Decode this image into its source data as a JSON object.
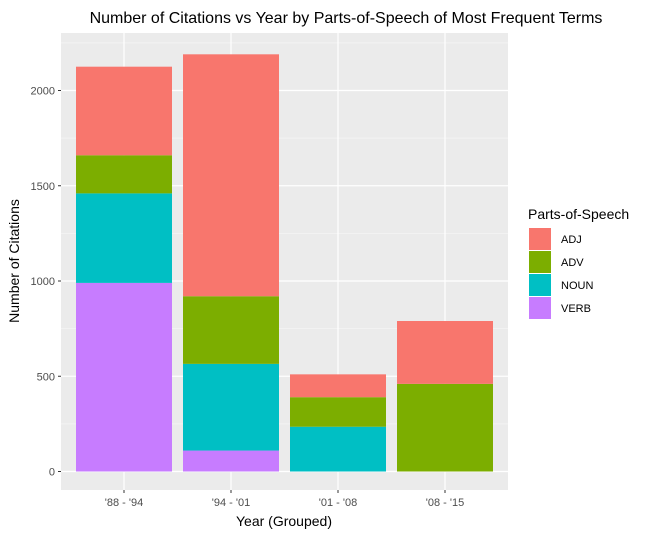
{
  "chart_data": {
    "type": "bar",
    "stacked": true,
    "title": "Number of Citations vs Year by Parts-of-Speech of Most Frequent Terms",
    "xlabel": "Year (Grouped)",
    "ylabel": "Number of Citations",
    "categories": [
      "'88 - '94",
      "'94 - '01",
      "'01 - '08",
      "'08 - '15"
    ],
    "ylim": [
      0,
      2290
    ],
    "yticks": [
      0,
      500,
      1000,
      1500,
      2000
    ],
    "grid": true,
    "legend": {
      "title": "Parts-of-Speech",
      "position": "right"
    },
    "series": [
      {
        "name": "VERB",
        "color": "#C77CFF",
        "values": [
          990,
          110,
          0,
          0
        ]
      },
      {
        "name": "NOUN",
        "color": "#00BFC4",
        "values": [
          470,
          455,
          235,
          0
        ]
      },
      {
        "name": "ADV",
        "color": "#7CAE00",
        "values": [
          200,
          355,
          155,
          460
        ]
      },
      {
        "name": "ADJ",
        "color": "#F8766D",
        "values": [
          465,
          1270,
          120,
          330
        ]
      }
    ],
    "legend_order": [
      "ADJ",
      "ADV",
      "NOUN",
      "VERB"
    ]
  }
}
